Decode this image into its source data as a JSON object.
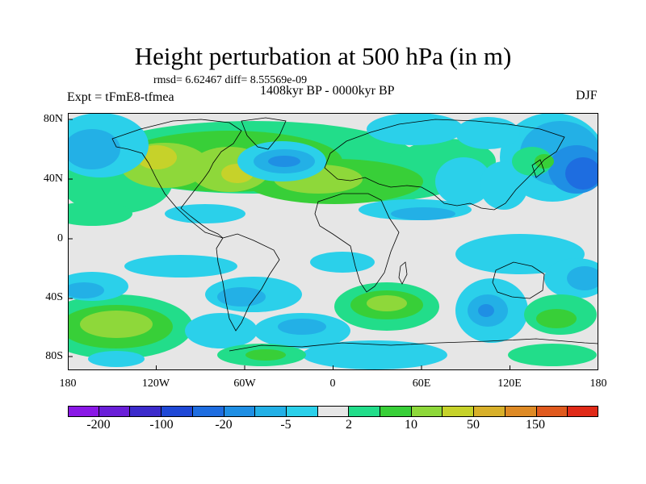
{
  "title": "Height perturbation at 500 hPa (in m)",
  "stats": "rmsd= 6.62467 diff= 8.55569e-09",
  "period": "1408kyr BP - 0000kyr BP",
  "experiment": "Expt = tFmE8-tfmea",
  "season": "DJF",
  "x_ticks": [
    "180",
    "120W",
    "60W",
    "0",
    "60E",
    "120E",
    "180"
  ],
  "y_ticks": [
    "80N",
    "40N",
    "0",
    "40S",
    "80S"
  ],
  "colorbar": {
    "colors": [
      "#8a18e6",
      "#6a1fd8",
      "#3c2bcc",
      "#1f48d6",
      "#1e6de0",
      "#1f8fe4",
      "#23b0e6",
      "#2bd0ea",
      "#e6e6e6",
      "#22dd8a",
      "#38cf38",
      "#8ed83a",
      "#c6d22a",
      "#d8b02a",
      "#de8a25",
      "#e05a1e",
      "#e02a18"
    ],
    "labels": [
      "-200",
      "-100",
      "-20",
      "-5",
      "2",
      "10",
      "50",
      "150"
    ]
  },
  "map_colors": {
    "neutral": "#e6e6e6",
    "teal": "#2bd0ea",
    "light_blue": "#23b0e6",
    "mid_blue": "#1f8fe4",
    "dark_blue": "#1e6de0",
    "green_teal": "#22dd8a",
    "green": "#38cf38",
    "yellow_green": "#8ed83a",
    "olive": "#c6d22a",
    "coast": "#000000"
  }
}
